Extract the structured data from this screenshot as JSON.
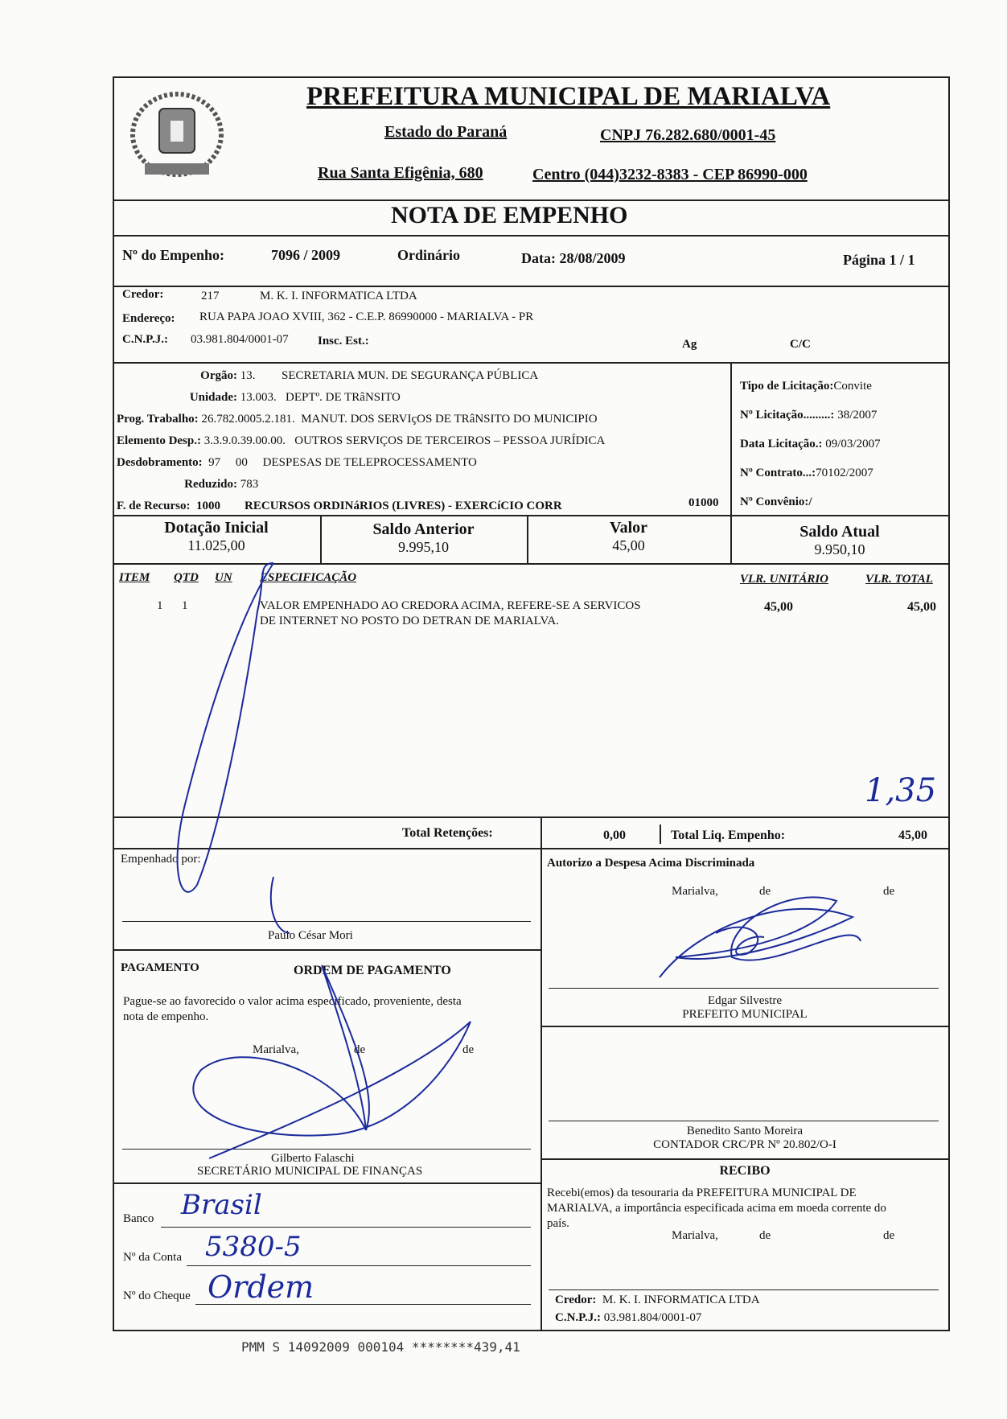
{
  "header": {
    "title": "PREFEITURA MUNICIPAL DE MARIALVA",
    "state": "Estado do Paraná",
    "cnpj": "CNPJ 76.282.680/0001-45",
    "street": "Rua Santa Efigênia, 680",
    "contact": "Centro  (044)3232-8383  -  CEP 86990-000",
    "doc_title": "NOTA  DE  EMPENHO"
  },
  "empenho": {
    "number_label": "Nº do Empenho:",
    "number": "7096 / 2009",
    "type": "Ordinário",
    "date": "Data: 28/08/2009",
    "page": "Página  1 / 1"
  },
  "credor": {
    "label": "Credor:",
    "code": "217",
    "name": "M. K. I. INFORMATICA LTDA",
    "address_label": "Endereço:",
    "address": "RUA PAPA JOAO XVIII, 362  -  C.E.P. 86990000  -  MARIALVA  -  PR",
    "cnpj_label": "C.N.P.J.:",
    "cnpj": "03.981.804/0001-07",
    "insc_label": "Insc. Est.:",
    "ag_label": "Ag",
    "cc_label": "C/C"
  },
  "dotacao": {
    "orgao_label": "Orgão:",
    "orgao_code": "13.",
    "orgao": "SECRETARIA MUN. DE SEGURANÇA PÚBLICA",
    "unidade_label": "Unidade:",
    "unidade_code": "13.003.",
    "unidade": "DEPTº. DE TRâNSITO",
    "prog_label": "Prog. Trabalho:",
    "prog_code": "26.782.0005.2.181.",
    "prog": "MANUT. DOS SERVIçOS DE TRâNSITO DO MUNICIPIO",
    "elem_label": "Elemento Desp.:",
    "elem_code": "3.3.9.0.39.00.00.",
    "elem": "OUTROS SERVIÇOS DE TERCEIROS – PESSOA JURÍDICA",
    "desd_label": "Desdobramento:",
    "desd_code1": "97",
    "desd_code2": "00",
    "desd": "DESPESAS DE TELEPROCESSAMENTO",
    "red_label": "Reduzido:",
    "red": "783",
    "fonte_label": "F. de Recurso:",
    "fonte_code": "1000",
    "fonte": "RECURSOS ORDINáRIOS (LIVRES) - EXERCíCIO CORR",
    "fonte_code2": "01000"
  },
  "licitacao": {
    "tipo": "Tipo de Licitação:",
    "tipo_val": "Convite",
    "num": "Nº Licitação.........:",
    "num_val": " 38/2007",
    "data": "Data Licitação.:",
    "data_val": " 09/03/2007",
    "contrato": "Nº Contrato...:",
    "contrato_val": "70102/2007",
    "convenio": "Nº Convênio:/"
  },
  "saldos": [
    {
      "label": "Dotação Inicial",
      "value": "11.025,00"
    },
    {
      "label": "Saldo Anterior",
      "value": "9.995,10"
    },
    {
      "label": "Valor",
      "value": "45,00"
    },
    {
      "label": "Saldo Atual",
      "value": "9.950,10"
    }
  ],
  "items": {
    "headers": [
      "ITEM",
      "QTD",
      "UN",
      "ESPECIFICAÇÃO",
      "VLR. UNITÁRIO",
      "VLR. TOTAL"
    ],
    "rows": [
      {
        "item": "1",
        "qtd": "1",
        "un": "",
        "desc1": "VALOR EMPENHADO AO CREDORA ACIMA, REFERE-SE A SERVICOS",
        "desc2": "DE INTERNET NO POSTO DO DETRAN DE MARIALVA.",
        "unit": "45,00",
        "total": "45,00"
      }
    ],
    "annotation": "1,35"
  },
  "totals": {
    "ret_label": "Total Retenções:",
    "ret": "0,00",
    "liq_label": "Total Liq. Empenho:",
    "liq": "45,00"
  },
  "empenhado": {
    "label": "Empenhado por:",
    "name": "Paulo César Mori"
  },
  "autorizo": {
    "label": "Autorizo a Despesa Acima Discriminada",
    "place": "Marialva,",
    "de1": "de",
    "de2": "de",
    "name": "Edgar Silvestre",
    "role": "PREFEITO MUNICIPAL"
  },
  "pagamento": {
    "label": "PAGAMENTO",
    "ordem": "ORDEM DE PAGAMENTO",
    "text1": "Pague-se ao favorecido o valor acima especificado, proveniente, desta",
    "text2": "nota de empenho.",
    "place": "Marialva,",
    "de1": "de",
    "de2": "de",
    "name": "Gilberto Falaschi",
    "role": "SECRETÁRIO MUNICIPAL DE FINANÇAS"
  },
  "contador": {
    "name": "Benedito Santo Moreira",
    "role": "CONTADOR CRC/PR Nº 20.802/O-I"
  },
  "recibo": {
    "title": "RECIBO",
    "text1": "Recebi(emos)  da  tesouraria  da  PREFEITURA  MUNICIPAL  DE",
    "text2": "MARIALVA, a importância especificada acima em moeda corrente do",
    "text3": "país.",
    "place": "Marialva,",
    "de1": "de",
    "de2": "de"
  },
  "banco": {
    "banco_label": "Banco",
    "banco": "Brasil",
    "conta_label": "Nº da Conta",
    "conta": "5380-5",
    "cheque_label": "Nº do Cheque",
    "cheque": "Ordem"
  },
  "credor_footer": {
    "label": "Credor:",
    "name": "M. K. I. INFORMATICA LTDA",
    "cnpj_label": "C.N.P.J.:",
    "cnpj": "03.981.804/0001-07"
  },
  "stamp": "PMM S 14092009 000104 ********439,41",
  "ink_color": "#1b2a9a"
}
